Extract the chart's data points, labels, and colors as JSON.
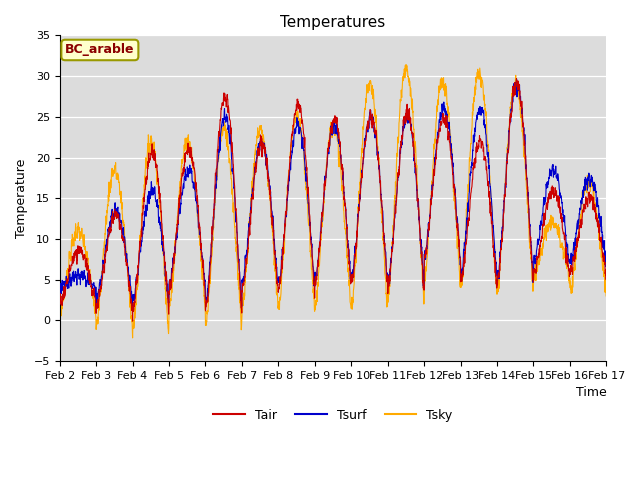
{
  "title": "Temperatures",
  "xlabel": "Time",
  "ylabel": "Temperature",
  "annotation": "BC_arable",
  "ylim": [
    -5,
    35
  ],
  "xlim": [
    0,
    360
  ],
  "plot_bg": "#dcdcdc",
  "fig_bg": "#ffffff",
  "line_colors": {
    "Tair": "#cc0000",
    "Tsurf": "#0000cc",
    "Tsky": "#ffaa00"
  },
  "legend_labels": [
    "Tair",
    "Tsurf",
    "Tsky"
  ],
  "x_tick_labels": [
    "Feb 2",
    "Feb 3",
    "Feb 4",
    "Feb 5",
    "Feb 6",
    "Feb 7",
    "Feb 8",
    "Feb 9",
    "Feb 10",
    "Feb 11",
    "Feb 12",
    "Feb 13",
    "Feb 14",
    "Feb 15",
    "Feb 16",
    "Feb 17"
  ],
  "x_tick_positions": [
    0,
    24,
    48,
    72,
    96,
    120,
    144,
    168,
    192,
    216,
    240,
    264,
    288,
    312,
    336,
    360
  ],
  "yticks": [
    -5,
    0,
    5,
    10,
    15,
    20,
    25,
    30,
    35
  ],
  "title_fontsize": 11,
  "axis_fontsize": 9,
  "tick_fontsize": 8,
  "legend_fontsize": 9
}
